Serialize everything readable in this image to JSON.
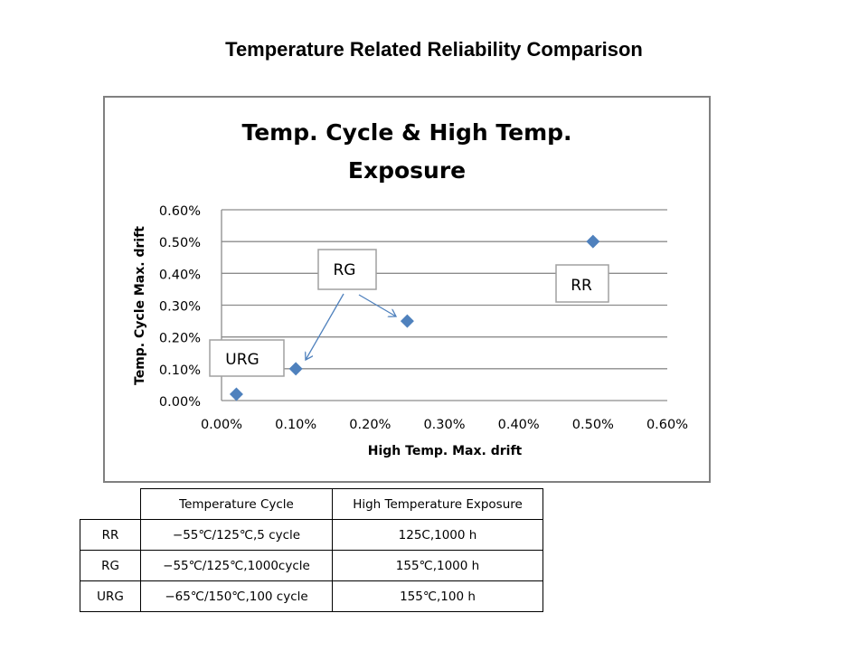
{
  "page_title": "Temperature Related Reliability Comparison",
  "chart_data": {
    "type": "scatter",
    "title_lines": [
      "Temp. Cycle & High Temp.",
      "Exposure"
    ],
    "xlabel": "High Temp. Max. drift",
    "ylabel": "Temp. Cycle Max. drift",
    "xlim": [
      0,
      0.006
    ],
    "ylim": [
      0,
      0.006
    ],
    "x_ticks": [
      "0.00%",
      "0.10%",
      "0.20%",
      "0.30%",
      "0.40%",
      "0.50%",
      "0.60%"
    ],
    "y_ticks": [
      "0.00%",
      "0.10%",
      "0.20%",
      "0.30%",
      "0.40%",
      "0.50%",
      "0.60%"
    ],
    "grid": "horizontal",
    "marker": "diamond",
    "color": "#4F81BD",
    "points": [
      {
        "x": 0.0002,
        "y": 0.0002
      },
      {
        "x": 0.001,
        "y": 0.001
      },
      {
        "x": 0.0025,
        "y": 0.0025
      },
      {
        "x": 0.005,
        "y": 0.005
      }
    ],
    "annotations": [
      {
        "text": "URG"
      },
      {
        "text": "RG"
      },
      {
        "text": "RR"
      }
    ]
  },
  "table": {
    "headers": [
      "",
      "Temperature Cycle",
      "High Temperature Exposure"
    ],
    "rows": [
      [
        "RR",
        "−55℃/125℃,5 cycle",
        "125C,1000 h"
      ],
      [
        "RG",
        "−55℃/125℃,1000cycle",
        "155℃,1000 h"
      ],
      [
        "URG",
        "−65℃/150℃,100 cycle",
        "155℃,100 h"
      ]
    ]
  }
}
